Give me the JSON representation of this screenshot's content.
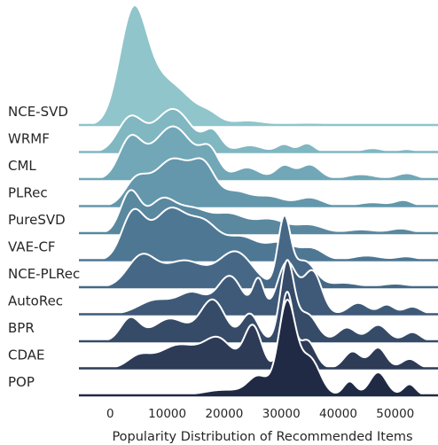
{
  "chart_data": {
    "type": "ridgeline",
    "xlabel": "Popularity Distribution of Recommended Items",
    "xlim": [
      -5500,
      57500
    ],
    "xticks": [
      0,
      10000,
      20000,
      30000,
      40000,
      50000
    ],
    "xtick_labels": [
      "0",
      "10000",
      "20000",
      "30000",
      "40000",
      "50000"
    ],
    "grid": false,
    "legend": "none",
    "series": [
      {
        "name": "NCE-SVD",
        "color": "#8fc5cb",
        "peaks": [
          [
            4000,
            2400,
            1.0
          ],
          [
            9000,
            3000,
            0.35
          ],
          [
            13500,
            2600,
            0.15
          ],
          [
            17500,
            1800,
            0.08
          ],
          [
            24000,
            3000,
            0.04
          ],
          [
            35000,
            4000,
            0.02
          ]
        ]
      },
      {
        "name": "WRMF",
        "color": "#80b7c1",
        "peaks": [
          [
            3500,
            2200,
            0.35
          ],
          [
            11000,
            3200,
            0.45
          ],
          [
            18000,
            1500,
            0.2
          ],
          [
            24500,
            2200,
            0.07
          ],
          [
            30500,
            1300,
            0.08
          ],
          [
            34500,
            1300,
            0.09
          ],
          [
            46000,
            1800,
            0.04
          ],
          [
            52000,
            1500,
            0.03
          ]
        ]
      },
      {
        "name": "CML",
        "color": "#71a7b7",
        "peaks": [
          [
            3500,
            2000,
            0.4
          ],
          [
            11000,
            3500,
            0.55
          ],
          [
            17500,
            1600,
            0.25
          ],
          [
            24000,
            2200,
            0.12
          ],
          [
            30500,
            1500,
            0.14
          ],
          [
            35000,
            1800,
            0.15
          ],
          [
            44000,
            2500,
            0.05
          ],
          [
            52000,
            1800,
            0.06
          ]
        ]
      },
      {
        "name": "PLRec",
        "color": "#6497ab",
        "peaks": [
          [
            4500,
            2000,
            0.25
          ],
          [
            11000,
            3300,
            0.5
          ],
          [
            16500,
            2000,
            0.35
          ],
          [
            22000,
            2500,
            0.15
          ],
          [
            28000,
            2500,
            0.1
          ],
          [
            35000,
            2200,
            0.09
          ],
          [
            46000,
            2500,
            0.04
          ],
          [
            51500,
            1500,
            0.06
          ]
        ]
      },
      {
        "name": "PureSVD",
        "color": "#59889f",
        "peaks": [
          [
            3500,
            1700,
            0.45
          ],
          [
            9000,
            2400,
            0.35
          ],
          [
            14500,
            2800,
            0.25
          ],
          [
            21000,
            2800,
            0.2
          ],
          [
            28000,
            2800,
            0.15
          ],
          [
            35000,
            2500,
            0.09
          ],
          [
            44000,
            2500,
            0.04
          ],
          [
            51000,
            2000,
            0.05
          ]
        ]
      },
      {
        "name": "VAE-CF",
        "color": "#4e7794",
        "peaks": [
          [
            4000,
            2000,
            0.5
          ],
          [
            10500,
            3000,
            0.55
          ],
          [
            16500,
            2500,
            0.35
          ],
          [
            23000,
            3000,
            0.25
          ],
          [
            30000,
            2500,
            0.18
          ],
          [
            35500,
            2000,
            0.12
          ],
          [
            45000,
            2500,
            0.05
          ],
          [
            52000,
            1800,
            0.04
          ]
        ]
      },
      {
        "name": "NCE-PLRec",
        "color": "#466886",
        "peaks": [
          [
            5500,
            2500,
            0.35
          ],
          [
            13000,
            3500,
            0.3
          ],
          [
            22000,
            3000,
            0.4
          ],
          [
            30500,
            1100,
            0.75
          ],
          [
            34000,
            2000,
            0.3
          ],
          [
            41000,
            2500,
            0.05
          ],
          [
            50000,
            2500,
            0.04
          ]
        ]
      },
      {
        "name": "AutoRec",
        "color": "#3f5a78",
        "peaks": [
          [
            8000,
            3000,
            0.15
          ],
          [
            14500,
            2500,
            0.22
          ],
          [
            21000,
            2200,
            0.4
          ],
          [
            26000,
            1000,
            0.35
          ],
          [
            31000,
            1700,
            0.55
          ],
          [
            35500,
            1600,
            0.45
          ],
          [
            43500,
            1700,
            0.12
          ],
          [
            48500,
            1300,
            0.1
          ],
          [
            53000,
            1500,
            0.08
          ]
        ]
      },
      {
        "name": "BPR",
        "color": "#364b68",
        "peaks": [
          [
            3500,
            1700,
            0.25
          ],
          [
            10500,
            3000,
            0.25
          ],
          [
            18000,
            2200,
            0.45
          ],
          [
            24500,
            1500,
            0.3
          ],
          [
            31000,
            1200,
            0.85
          ],
          [
            34500,
            1800,
            0.3
          ],
          [
            41500,
            1600,
            0.15
          ],
          [
            47000,
            1700,
            0.18
          ],
          [
            53000,
            1400,
            0.1
          ]
        ]
      },
      {
        "name": "CDAE",
        "color": "#2d3b57",
        "peaks": [
          [
            5000,
            2000,
            0.12
          ],
          [
            12000,
            3500,
            0.25
          ],
          [
            19000,
            2500,
            0.3
          ],
          [
            25000,
            1500,
            0.45
          ],
          [
            31000,
            1100,
            0.8
          ],
          [
            34500,
            1500,
            0.3
          ],
          [
            42500,
            1500,
            0.18
          ],
          [
            47000,
            1400,
            0.22
          ],
          [
            52500,
            1400,
            0.1
          ]
        ]
      },
      {
        "name": "POP",
        "color": "#212a45",
        "peaks": [
          [
            20000,
            3500,
            0.06
          ],
          [
            26000,
            1800,
            0.2
          ],
          [
            31000,
            1500,
            1.0
          ],
          [
            35000,
            1800,
            0.4
          ],
          [
            42000,
            1100,
            0.15
          ],
          [
            47000,
            1500,
            0.25
          ],
          [
            52500,
            1100,
            0.12
          ]
        ]
      }
    ]
  }
}
